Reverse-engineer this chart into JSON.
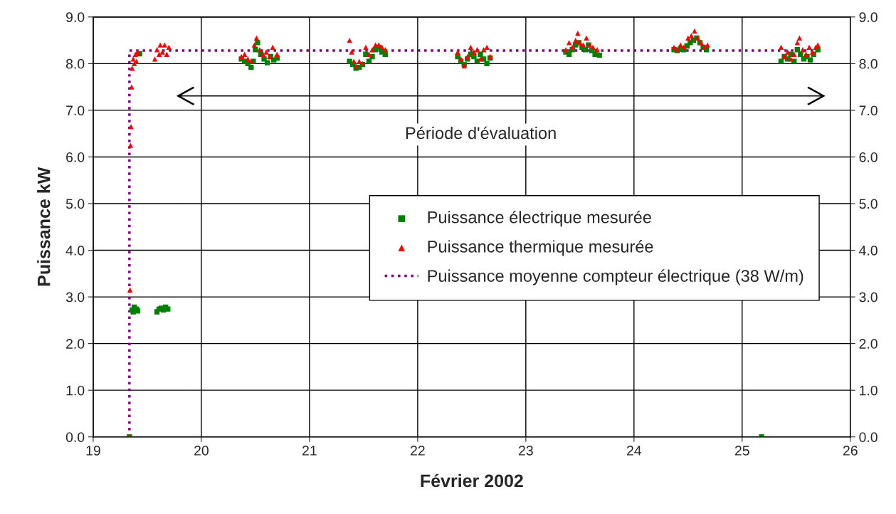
{
  "chart_data": {
    "type": "scatter",
    "xlabel": "Février 2002",
    "ylabel": "Puissance kW",
    "series": [
      {
        "name": "Puissance électrique mesurée",
        "type": "scatter",
        "color": "#008000",
        "marker": "square",
        "x": [
          19.335,
          19.36,
          19.37,
          19.38,
          19.4,
          19.41,
          19.43,
          19.59,
          19.61,
          19.63,
          19.65,
          19.67,
          19.69,
          20.37,
          20.4,
          20.43,
          20.46,
          20.48,
          20.5,
          20.52,
          20.55,
          20.58,
          20.61,
          20.64,
          20.67,
          20.7,
          21.37,
          21.4,
          21.43,
          21.46,
          21.49,
          21.52,
          21.55,
          21.58,
          21.61,
          21.64,
          21.67,
          21.7,
          22.37,
          22.4,
          22.43,
          22.46,
          22.49,
          22.52,
          22.55,
          22.58,
          22.61,
          22.64,
          22.67,
          23.37,
          23.4,
          23.43,
          23.46,
          23.49,
          23.52,
          23.55,
          23.58,
          23.61,
          23.64,
          23.68,
          24.37,
          24.4,
          24.43,
          24.46,
          24.49,
          24.52,
          24.55,
          24.58,
          24.61,
          24.64,
          24.67,
          25.18,
          25.36,
          25.39,
          25.42,
          25.45,
          25.48,
          25.51,
          25.54,
          25.57,
          25.6,
          25.63,
          25.66,
          25.7
        ],
        "values": [
          0,
          2.72,
          2.68,
          2.78,
          2.74,
          2.7,
          8.21,
          2.68,
          2.74,
          2.76,
          2.72,
          2.78,
          2.74,
          8.1,
          8.05,
          8.0,
          7.92,
          8.05,
          8.3,
          8.45,
          8.2,
          8.1,
          8.02,
          8.15,
          8.08,
          8.12,
          8.05,
          7.98,
          7.9,
          7.92,
          7.98,
          8.2,
          8.05,
          8.15,
          8.3,
          8.35,
          8.25,
          8.2,
          8.15,
          8.05,
          7.98,
          8.1,
          8.2,
          8.15,
          8.05,
          8.2,
          8.1,
          8.0,
          8.12,
          8.25,
          8.2,
          8.3,
          8.4,
          8.45,
          8.35,
          8.3,
          8.4,
          8.28,
          8.2,
          8.18,
          8.3,
          8.28,
          8.32,
          8.3,
          8.38,
          8.45,
          8.5,
          8.55,
          8.45,
          8.35,
          8.3,
          0,
          8.05,
          8.15,
          8.1,
          8.2,
          8.05,
          8.3,
          8.2,
          8.1,
          8.15,
          8.08,
          8.2,
          8.3
        ]
      },
      {
        "name": "Puissance thermique mesurée",
        "type": "scatter",
        "color": "#ff0000",
        "marker": "triangle",
        "x": [
          19.335,
          19.34,
          19.345,
          19.35,
          19.355,
          19.36,
          19.37,
          19.38,
          19.39,
          19.4,
          19.41,
          19.57,
          19.59,
          19.61,
          19.62,
          19.64,
          19.66,
          19.68,
          19.7,
          20.37,
          20.4,
          20.43,
          20.46,
          20.49,
          20.51,
          20.54,
          20.57,
          20.6,
          20.63,
          20.66,
          20.7,
          21.37,
          21.39,
          21.41,
          21.43,
          21.46,
          21.49,
          21.52,
          21.55,
          21.58,
          21.61,
          21.64,
          21.67,
          21.7,
          22.37,
          22.4,
          22.43,
          22.46,
          22.49,
          22.52,
          22.55,
          22.58,
          22.61,
          22.64,
          22.67,
          23.37,
          23.4,
          23.43,
          23.46,
          23.48,
          23.5,
          23.53,
          23.56,
          23.59,
          23.62,
          23.66,
          24.37,
          24.4,
          24.43,
          24.46,
          24.5,
          24.53,
          24.56,
          24.59,
          24.62,
          24.65,
          24.68,
          25.36,
          25.39,
          25.42,
          25.45,
          25.48,
          25.51,
          25.53,
          25.56,
          25.59,
          25.62,
          25.65,
          25.68,
          25.7
        ],
        "values": [
          0,
          3.15,
          6.25,
          6.65,
          7.5,
          7.9,
          8.1,
          8.0,
          8.2,
          8.05,
          8.25,
          8.1,
          8.3,
          8.2,
          8.4,
          8.25,
          8.4,
          8.2,
          8.35,
          8.15,
          8.2,
          8.1,
          8.05,
          8.4,
          8.55,
          8.3,
          8.2,
          8.25,
          8.15,
          8.35,
          8.2,
          8.5,
          8.25,
          8.05,
          7.95,
          8.05,
          8.0,
          8.35,
          8.2,
          8.3,
          8.4,
          8.4,
          8.35,
          8.3,
          8.25,
          8.1,
          7.95,
          8.15,
          8.35,
          8.25,
          8.3,
          8.1,
          8.3,
          8.35,
          8.15,
          8.3,
          8.45,
          8.35,
          8.5,
          8.65,
          8.45,
          8.4,
          8.55,
          8.4,
          8.35,
          8.3,
          8.35,
          8.3,
          8.4,
          8.35,
          8.55,
          8.6,
          8.7,
          8.55,
          8.45,
          8.35,
          8.4,
          8.35,
          8.15,
          8.25,
          8.1,
          8.2,
          8.45,
          8.55,
          8.3,
          8.2,
          8.35,
          8.25,
          8.35,
          8.4
        ]
      },
      {
        "name": "Puissance moyenne compteur électrique (38 W/m)",
        "type": "line",
        "color": "#800080",
        "marker": "none",
        "line_style": "dotted",
        "x": [
          19.335,
          19.335,
          25.7
        ],
        "values": [
          0,
          8.28,
          8.28
        ]
      }
    ],
    "xlim": [
      19,
      26
    ],
    "xticks": [
      19,
      20,
      21,
      22,
      23,
      24,
      25,
      26
    ],
    "ylim": [
      0,
      9
    ],
    "yticks": [
      {
        "value": 0,
        "label": "0.0"
      },
      {
        "value": 1,
        "label": "1.0"
      },
      {
        "value": 2,
        "label": "2.0"
      },
      {
        "value": 3,
        "label": "3.0"
      },
      {
        "value": 4,
        "label": "4.0"
      },
      {
        "value": 5,
        "label": "5.0"
      },
      {
        "value": 6,
        "label": "6.0"
      },
      {
        "value": 7,
        "label": "7.0"
      },
      {
        "value": 8,
        "label": "8.0"
      },
      {
        "value": 9,
        "label": "9.0"
      }
    ],
    "y2lim": [
      0,
      9
    ],
    "y2ticks": [
      {
        "value": 0,
        "label": "0.0"
      },
      {
        "value": 1,
        "label": "1.0"
      },
      {
        "value": 2,
        "label": "2.0"
      },
      {
        "value": 3,
        "label": "3.0"
      },
      {
        "value": 4,
        "label": "4.0"
      },
      {
        "value": 5,
        "label": "5.0"
      },
      {
        "value": 6,
        "label": "6.0"
      },
      {
        "value": 7,
        "label": "7.0"
      },
      {
        "value": 8,
        "label": "8.0"
      },
      {
        "value": 9,
        "label": "9.0"
      }
    ],
    "annotations": [
      "Période d'évaluation"
    ],
    "grid": true,
    "legend": "right"
  }
}
